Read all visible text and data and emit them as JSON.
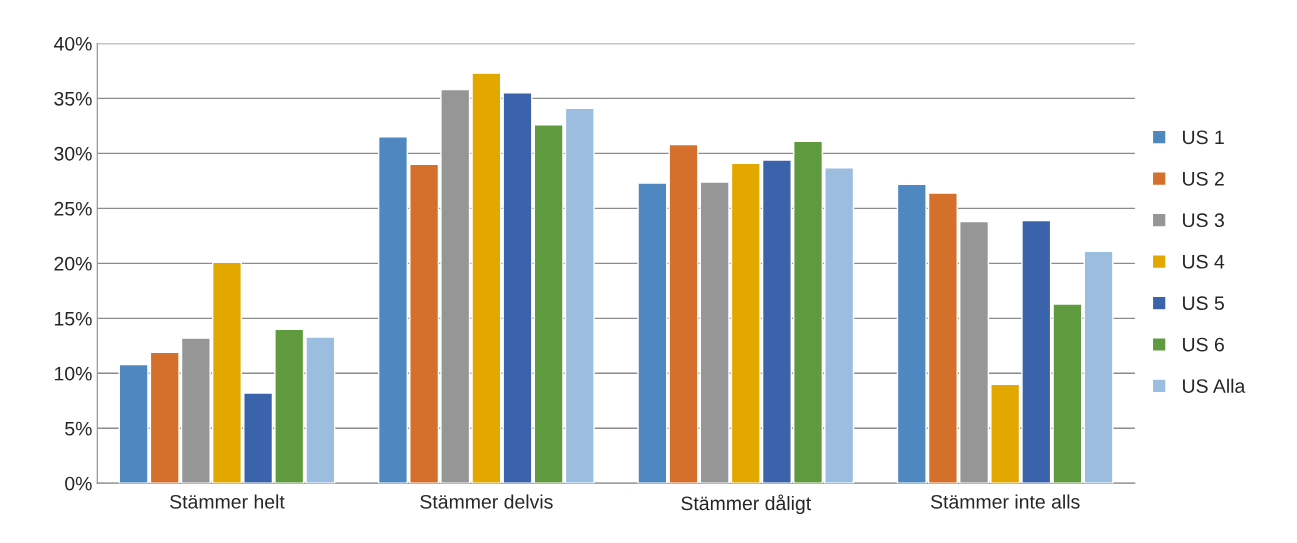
{
  "chart_data": {
    "type": "bar",
    "categories": [
      "Stämmer helt",
      "Stämmer delvis",
      "Stämmer dåligt",
      "Stämmer inte alls"
    ],
    "series": [
      {
        "name": "US 1",
        "color": "#4f88c0",
        "values": [
          10.8,
          31.5,
          27.3,
          27.2
        ]
      },
      {
        "name": "US 2",
        "color": "#d46f2c",
        "values": [
          11.9,
          29.0,
          30.8,
          26.4
        ]
      },
      {
        "name": "US 3",
        "color": "#969696",
        "values": [
          13.2,
          35.8,
          27.4,
          23.8
        ]
      },
      {
        "name": "US 4",
        "color": "#e3a800",
        "values": [
          20.1,
          37.3,
          29.1,
          9.0
        ]
      },
      {
        "name": "US 5",
        "color": "#3b63ab",
        "values": [
          8.2,
          35.5,
          29.4,
          23.9
        ]
      },
      {
        "name": "US 6",
        "color": "#5f9a3e",
        "values": [
          14.0,
          32.6,
          31.1,
          16.3
        ]
      },
      {
        "name": "US Alla",
        "color": "#9bbde0",
        "values": [
          13.3,
          34.1,
          28.7,
          21.1
        ]
      }
    ],
    "ylim": [
      0,
      40
    ],
    "yticks": [
      {
        "value": 0,
        "label": "0%"
      },
      {
        "value": 5,
        "label": "5%"
      },
      {
        "value": 10,
        "label": "10%"
      },
      {
        "value": 15,
        "label": "15%"
      },
      {
        "value": 20,
        "label": "20%"
      },
      {
        "value": 25,
        "label": "25%"
      },
      {
        "value": 30,
        "label": "30%"
      },
      {
        "value": 35,
        "label": "35%"
      },
      {
        "value": 40,
        "label": "40%"
      }
    ],
    "grid": "y",
    "legend": "right"
  }
}
